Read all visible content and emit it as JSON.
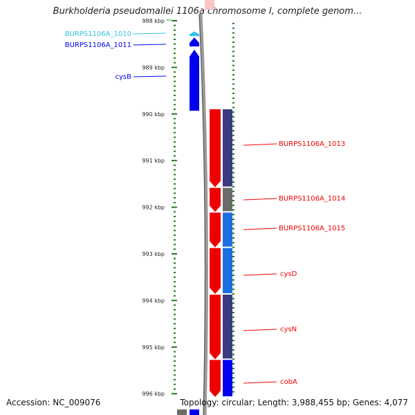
{
  "title": "Burkholderia pseudomallei 1106a chromosome I, complete genom...",
  "footer": {
    "accession": "Accession: NC_009076",
    "summary": "Topology: circular; Length: 3,988,455 bp; Genes: 4,077"
  },
  "ruler": {
    "start_kbp": 988,
    "end_kbp": 996,
    "tick_labels": [
      "988 kbp",
      "989 kbp",
      "990 kbp",
      "991 kbp",
      "992 kbp",
      "993 kbp",
      "994 kbp",
      "995 kbp",
      "996 kbp"
    ]
  },
  "colors": {
    "light_blue": "#33c2e8",
    "blue": "#0000ee",
    "red": "#ee0000",
    "slate": "#3a3a80",
    "gray": "#6b6b6b",
    "mid_blue": "#1c6fe0",
    "ruler_green": "#1e7a1e",
    "backbone": "#8a8a8a"
  },
  "left_features": [
    {
      "label": "BURPS1106A_1010",
      "start": 988.23,
      "end": 988.33,
      "color": "#33c2e8"
    },
    {
      "label": "BURPS1106A_1011",
      "start": 988.36,
      "end": 988.55,
      "color": "#0000ee"
    },
    {
      "label": "cysB",
      "start": 988.62,
      "end": 989.93,
      "color": "#0000ee"
    }
  ],
  "right_features": [
    {
      "label": "BURPS1106A_1013",
      "start": 989.9,
      "end": 991.57,
      "color": "#ee0000",
      "track2": "#3a3a80"
    },
    {
      "label": "BURPS1106A_1014",
      "start": 991.57,
      "end": 992.1,
      "color": "#ee0000",
      "track2": "#6b6b6b"
    },
    {
      "label": "BURPS1106A_1015",
      "start": 992.1,
      "end": 992.86,
      "color": "#ee0000",
      "track2": "#1c6fe0"
    },
    {
      "label": "cysD",
      "start": 992.86,
      "end": 993.86,
      "color": "#ee0000",
      "track2": "#1c6fe0"
    },
    {
      "label": "cysN",
      "start": 993.86,
      "end": 995.26,
      "color": "#ee0000",
      "track2": "#3a3a80"
    },
    {
      "label": "cobA",
      "start": 995.26,
      "end": 996.2,
      "color": "#ee0000",
      "track2": "#0000ee"
    }
  ]
}
